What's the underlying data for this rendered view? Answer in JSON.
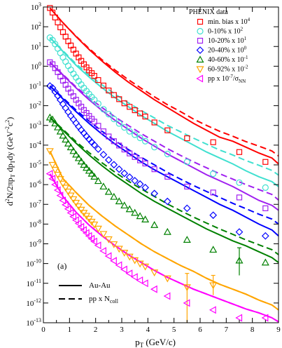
{
  "chart_data": {
    "type": "scatter",
    "xlabel": "p_T (GeV/c)",
    "xlabel_main": "p",
    "xlabel_sub": "T",
    "xlabel_rest": " (GeV/c)",
    "ylabel": "d²N/2πp_T dp_T dy (GeV⁻²c²)",
    "ylabel_parts": {
      "a": "d",
      "b": "2",
      "c": "N/2πp",
      "d": "T",
      "e": " dp",
      "f": "T",
      "g": "dy (GeV",
      "h": "-2",
      "i": "c",
      "j": "2",
      "k": ")"
    },
    "xlim": [
      0,
      9
    ],
    "ylim_log10": [
      -13,
      3
    ],
    "y_log_scale": true,
    "x_ticks": [
      "0",
      "1",
      "2",
      "3",
      "4",
      "5",
      "6",
      "7",
      "8",
      "9"
    ],
    "panel_label": "(a)",
    "legend_title": "PHENIX data",
    "legend_position": "top-right",
    "line_legend": [
      {
        "label": "Au-Au",
        "style": "solid"
      },
      {
        "label": "pp x N",
        "sub": "coll",
        "style": "dashed"
      }
    ],
    "series": [
      {
        "name": "min. bias x 10",
        "sup": "4",
        "sup_sub": "",
        "color": "#ff0000",
        "marker": "square",
        "x": [
          0.25,
          0.35,
          0.45,
          0.55,
          0.65,
          0.75,
          0.85,
          0.95,
          1.05,
          1.15,
          1.25,
          1.35,
          1.45,
          1.55,
          1.65,
          1.75,
          1.85,
          1.95,
          2.1,
          2.3,
          2.5,
          2.7,
          2.9,
          3.1,
          3.3,
          3.5,
          3.7,
          3.9,
          4.25,
          4.75,
          5.5,
          6.5,
          7.5,
          8.5
        ],
        "y": [
          2.95,
          2.72,
          2.47,
          2.22,
          1.97,
          1.73,
          1.5,
          1.27,
          1.05,
          0.84,
          0.64,
          0.45,
          0.27,
          0.1,
          -0.06,
          -0.21,
          -0.35,
          -0.49,
          -0.7,
          -0.98,
          -1.23,
          -1.46,
          -1.67,
          -1.88,
          -2.06,
          -2.23,
          -2.39,
          -2.55,
          -2.85,
          -3.25,
          -3.65,
          -3.85,
          -4.35,
          -4.85
        ],
        "solid": [
          2.95,
          2.2,
          1.5,
          0.85,
          0.25,
          -0.3,
          -0.8,
          -1.25,
          -1.7,
          -2.1,
          -2.5,
          -2.9,
          -3.25,
          -3.6,
          -3.8,
          -4.1,
          -4.4,
          -4.65,
          -4.95
        ],
        "dashed": [
          2.95,
          2.2,
          1.52,
          0.9,
          0.32,
          -0.2,
          -0.68,
          -1.12,
          -1.55,
          -1.95,
          -2.3,
          -2.68,
          -3.0,
          -3.3,
          -3.55,
          -3.82,
          -4.05,
          -4.3,
          -4.55
        ]
      },
      {
        "name": "0-10% x 10",
        "sup": "2",
        "sup_sub": "",
        "color": "#40e0d0",
        "marker": "circle",
        "x": [
          0.25,
          0.35,
          0.45,
          0.55,
          0.65,
          0.75,
          0.85,
          0.95,
          1.05,
          1.15,
          1.25,
          1.35,
          1.45,
          1.55,
          1.65,
          1.75,
          1.85,
          1.95,
          2.1,
          2.3,
          2.5,
          2.7,
          2.9,
          3.1,
          3.3,
          3.5,
          3.7,
          3.9,
          4.25,
          4.75,
          5.5,
          6.5,
          7.5,
          8.5
        ],
        "y": [
          1.45,
          1.32,
          1.12,
          0.9,
          0.67,
          0.45,
          0.23,
          0.02,
          -0.18,
          -0.38,
          -0.57,
          -0.75,
          -0.93,
          -1.1,
          -1.26,
          -1.41,
          -1.56,
          -1.7,
          -1.9,
          -2.18,
          -2.43,
          -2.67,
          -2.9,
          -3.1,
          -3.3,
          -3.47,
          -3.63,
          -3.8,
          -4.1,
          -4.45,
          -4.85,
          -5.45,
          -5.9,
          -6.15
        ],
        "solid": [
          1.45,
          0.75,
          0.05,
          -0.55,
          -1.1,
          -1.6,
          -2.05,
          -2.5,
          -2.9,
          -3.3,
          -3.65,
          -4.0,
          -4.35,
          -4.65,
          -4.95,
          -5.3,
          -5.6,
          -5.85,
          -6.1
        ],
        "dashed": [
          1.45,
          0.78,
          0.12,
          -0.45,
          -0.95,
          -1.42,
          -1.85,
          -2.25,
          -2.62,
          -3.0,
          -3.32,
          -3.65,
          -3.95,
          -4.25,
          -4.5,
          -4.78,
          -5.02,
          -5.28,
          -5.52
        ]
      },
      {
        "name": "10-20% x 10",
        "sup": "1",
        "sup_sub": "",
        "color": "#a020f0",
        "marker": "square",
        "x": [
          0.25,
          0.35,
          0.45,
          0.55,
          0.65,
          0.75,
          0.85,
          0.95,
          1.05,
          1.15,
          1.25,
          1.35,
          1.45,
          1.55,
          1.65,
          1.75,
          1.85,
          1.95,
          2.1,
          2.3,
          2.5,
          2.7,
          2.9,
          3.1,
          3.3,
          3.5,
          3.7,
          3.9,
          4.25,
          4.75,
          5.5,
          6.5,
          7.5,
          8.5
        ],
        "y": [
          0.2,
          0.1,
          -0.1,
          -0.3,
          -0.52,
          -0.73,
          -0.94,
          -1.14,
          -1.33,
          -1.52,
          -1.7,
          -1.88,
          -2.05,
          -2.22,
          -2.37,
          -2.52,
          -2.67,
          -2.81,
          -3.02,
          -3.3,
          -3.56,
          -3.8,
          -4.02,
          -4.22,
          -4.42,
          -4.6,
          -4.77,
          -4.93,
          -5.22,
          -5.6,
          -6.1,
          -6.4,
          -6.65,
          -7.2
        ],
        "solid": [
          0.2,
          -0.45,
          -1.1,
          -1.7,
          -2.25,
          -2.75,
          -3.2,
          -3.65,
          -4.05,
          -4.45,
          -4.8,
          -5.15,
          -5.5,
          -5.8,
          -6.1,
          -6.45,
          -6.8,
          -7.05,
          -7.3
        ],
        "dashed": [
          0.2,
          -0.42,
          -1.05,
          -1.6,
          -2.1,
          -2.58,
          -3.0,
          -3.42,
          -3.8,
          -4.18,
          -4.52,
          -4.85,
          -5.15,
          -5.45,
          -5.72,
          -6.0,
          -6.25,
          -6.5,
          -6.78
        ]
      },
      {
        "name": "20-40% x 10",
        "sup": "0",
        "sup_sub": "",
        "color": "#0000ff",
        "marker": "diamond",
        "x": [
          0.25,
          0.35,
          0.45,
          0.55,
          0.65,
          0.75,
          0.85,
          0.95,
          1.05,
          1.15,
          1.25,
          1.35,
          1.45,
          1.55,
          1.65,
          1.75,
          1.85,
          1.95,
          2.1,
          2.3,
          2.5,
          2.7,
          2.9,
          3.1,
          3.3,
          3.5,
          3.7,
          3.9,
          4.25,
          4.75,
          5.5,
          6.5,
          7.5,
          8.5
        ],
        "y": [
          -1.0,
          -1.1,
          -1.3,
          -1.5,
          -1.71,
          -1.92,
          -2.12,
          -2.32,
          -2.52,
          -2.7,
          -2.88,
          -3.06,
          -3.23,
          -3.39,
          -3.55,
          -3.7,
          -3.85,
          -3.99,
          -4.2,
          -4.48,
          -4.75,
          -4.99,
          -5.22,
          -5.43,
          -5.62,
          -5.8,
          -5.97,
          -6.15,
          -6.45,
          -6.85,
          -7.2,
          -7.55,
          -8.4,
          -8.6
        ],
        "solid": [
          -1.0,
          -1.65,
          -2.3,
          -2.9,
          -3.45,
          -3.95,
          -4.4,
          -4.85,
          -5.25,
          -5.6,
          -5.95,
          -6.3,
          -6.65,
          -7.0,
          -7.3,
          -7.65,
          -8.0,
          -8.3,
          -8.6
        ],
        "dashed": [
          -1.0,
          -1.6,
          -2.22,
          -2.78,
          -3.3,
          -3.78,
          -4.22,
          -4.62,
          -5.0,
          -5.38,
          -5.72,
          -6.05,
          -6.35,
          -6.65,
          -6.95,
          -7.22,
          -7.5,
          -7.75,
          -8.0
        ]
      },
      {
        "name": "40-60% x 10",
        "sup": "-1",
        "sup_sub": "",
        "color": "#008000",
        "marker": "triangle",
        "x": [
          0.25,
          0.35,
          0.45,
          0.55,
          0.65,
          0.75,
          0.85,
          0.95,
          1.05,
          1.15,
          1.25,
          1.35,
          1.45,
          1.55,
          1.65,
          1.75,
          1.85,
          1.95,
          2.1,
          2.3,
          2.5,
          2.7,
          2.9,
          3.1,
          3.3,
          3.5,
          3.7,
          3.9,
          4.25,
          4.75,
          5.5,
          6.5,
          7.5,
          8.5
        ],
        "y": [
          -2.6,
          -2.7,
          -2.9,
          -3.1,
          -3.31,
          -3.52,
          -3.72,
          -3.92,
          -4.11,
          -4.3,
          -4.48,
          -4.66,
          -4.83,
          -5.0,
          -5.15,
          -5.3,
          -5.45,
          -5.6,
          -5.82,
          -6.1,
          -6.37,
          -6.62,
          -6.85,
          -7.06,
          -7.25,
          -7.43,
          -7.6,
          -7.77,
          -8.05,
          -8.4,
          -8.8,
          -9.3,
          -9.85,
          -9.95
        ],
        "solid": [
          -2.6,
          -3.25,
          -3.9,
          -4.5,
          -5.05,
          -5.55,
          -6.0,
          -6.45,
          -6.85,
          -7.2,
          -7.55,
          -7.9,
          -8.25,
          -8.55,
          -8.85,
          -9.1,
          -9.4,
          -9.7,
          -9.95
        ],
        "dashed": [
          -2.6,
          -3.2,
          -3.82,
          -4.38,
          -4.9,
          -5.38,
          -5.82,
          -6.22,
          -6.6,
          -6.98,
          -7.32,
          -7.65,
          -7.95,
          -8.25,
          -8.52,
          -8.8,
          -9.05,
          -9.3,
          -9.55
        ]
      },
      {
        "name": "60-92% x 10",
        "sup": "-2",
        "sup_sub": "",
        "color": "#ffa500",
        "marker": "triangle-down",
        "x": [
          0.25,
          0.35,
          0.45,
          0.55,
          0.65,
          0.75,
          0.85,
          0.95,
          1.05,
          1.15,
          1.25,
          1.35,
          1.45,
          1.55,
          1.65,
          1.75,
          1.85,
          1.95,
          2.1,
          2.3,
          2.5,
          2.7,
          2.9,
          3.1,
          3.3,
          3.5,
          3.7,
          3.9,
          4.25,
          4.75,
          5.5,
          6.5
        ],
        "y": [
          -4.3,
          -5.0,
          -5.25,
          -5.5,
          -5.72,
          -5.95,
          -6.15,
          -6.35,
          -6.55,
          -6.74,
          -6.92,
          -7.1,
          -7.27,
          -7.43,
          -7.58,
          -7.73,
          -7.88,
          -8.02,
          -8.23,
          -8.5,
          -8.77,
          -9.02,
          -9.25,
          -9.45,
          -9.65,
          -9.83,
          -10.0,
          -10.15,
          -10.45,
          -10.75,
          -11.2,
          -11.1
        ],
        "solid": [
          -4.3,
          -5.7,
          -6.4,
          -7.05,
          -7.6,
          -8.1,
          -8.55,
          -9.0,
          -9.4,
          -9.75,
          -10.1,
          -10.4,
          -10.75,
          -11.05,
          -11.3,
          -11.55,
          -11.85,
          -12.1,
          -12.35
        ],
        "dashed": [
          -4.3,
          -5.7,
          -6.4,
          -7.05,
          -7.6,
          -8.1,
          -8.55,
          -9.0,
          -9.4,
          -9.75,
          -10.1,
          -10.4,
          -10.75,
          -11.05,
          -11.3,
          -11.55,
          -11.85,
          -12.1,
          -12.35
        ]
      },
      {
        "name": "pp x 10",
        "sup": "-7",
        "sup_sub": "/σ",
        "sup_tail": "NN",
        "color": "#ff00ff",
        "marker": "triangle-left",
        "x": [
          0.25,
          0.35,
          0.45,
          0.55,
          0.65,
          0.75,
          0.85,
          0.95,
          1.05,
          1.15,
          1.25,
          1.35,
          1.45,
          1.55,
          1.65,
          1.75,
          1.85,
          1.95,
          2.1,
          2.3,
          2.5,
          2.7,
          2.9,
          3.1,
          3.3,
          3.5,
          3.7,
          3.9,
          4.25,
          4.75,
          5.5,
          6.5,
          7.5,
          8.5
        ],
        "y": [
          -5.45,
          -5.7,
          -6.0,
          -6.28,
          -6.55,
          -6.8,
          -7.02,
          -7.23,
          -7.43,
          -7.62,
          -7.8,
          -7.97,
          -8.14,
          -8.3,
          -8.45,
          -8.6,
          -8.74,
          -8.88,
          -9.08,
          -9.36,
          -9.62,
          -9.86,
          -10.08,
          -10.3,
          -10.5,
          -10.68,
          -10.85,
          -11.0,
          -11.3,
          -11.65,
          -12.0,
          -12.35,
          -12.75,
          -12.75
        ],
        "solid": [
          -5.45,
          -6.6,
          -7.4,
          -8.05,
          -8.6,
          -9.1,
          -9.55,
          -9.95,
          -10.35,
          -10.7,
          -11.0,
          -11.3,
          -11.55,
          -11.8,
          -12.05,
          -12.3,
          -12.5,
          -12.75,
          -12.95
        ],
        "dashed": [
          -5.45,
          -6.6,
          -7.4,
          -8.05,
          -8.6,
          -9.1,
          -9.55,
          -9.95,
          -10.35,
          -10.7,
          -11.0,
          -11.3,
          -11.55,
          -11.8,
          -12.05,
          -12.3,
          -12.5,
          -12.75,
          -12.95
        ]
      }
    ],
    "curve_x": [
      0.25,
      0.75,
      1.25,
      1.75,
      2.25,
      2.75,
      3.25,
      3.75,
      4.25,
      4.75,
      5.25,
      5.75,
      6.25,
      6.75,
      7.25,
      7.75,
      8.25,
      8.75,
      9.0
    ],
    "error_bars": [
      {
        "series": 5,
        "x": 5.5,
        "y_low": -13.0,
        "y_high": -10.5
      },
      {
        "series": 5,
        "x": 6.5,
        "y_low": -11.6,
        "y_high": -10.6
      },
      {
        "series": 4,
        "x": 7.5,
        "y_low": -10.6,
        "y_high": -9.2
      }
    ]
  }
}
